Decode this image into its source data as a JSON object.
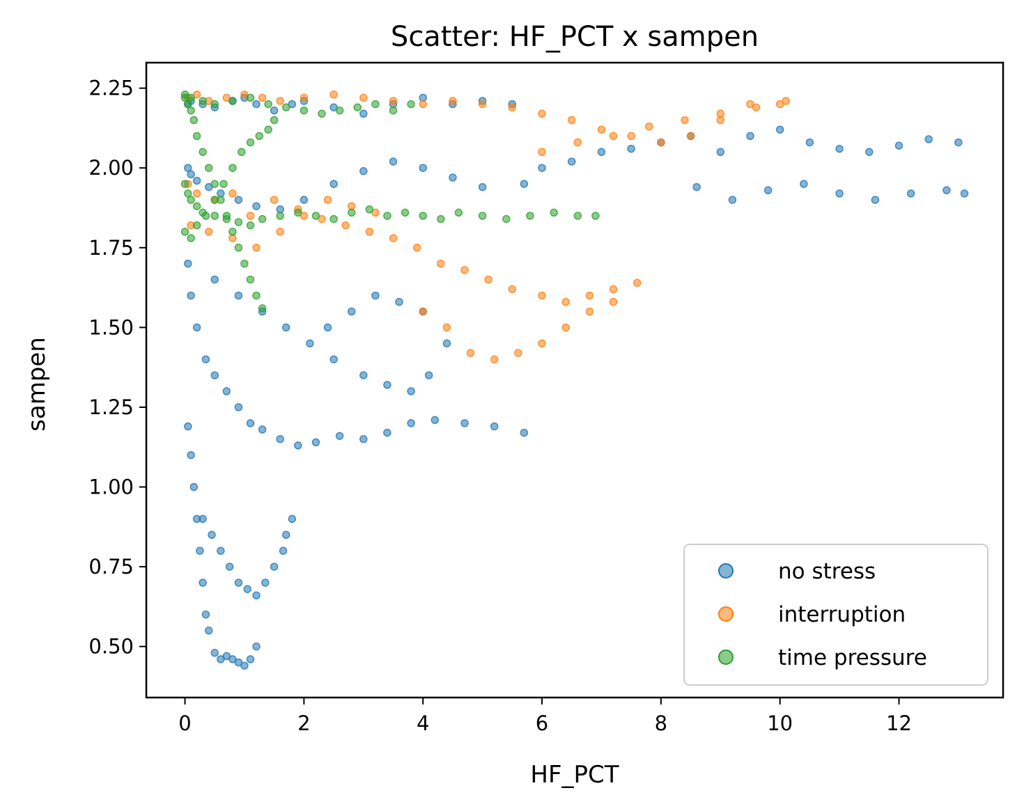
{
  "chart_data": {
    "type": "scatter",
    "title": "Scatter: HF_PCT x sampen",
    "xlabel": "HF_PCT",
    "ylabel": "sampen",
    "xlim": [
      -0.65,
      13.75
    ],
    "ylim": [
      0.34,
      2.33
    ],
    "xticks": [
      0,
      2,
      4,
      6,
      8,
      10,
      12
    ],
    "xtick_labels": [
      "0",
      "2",
      "4",
      "6",
      "8",
      "10",
      "12"
    ],
    "yticks": [
      0.5,
      0.75,
      1.0,
      1.25,
      1.5,
      1.75,
      2.0,
      2.25
    ],
    "ytick_labels": [
      "0.50",
      "0.75",
      "1.00",
      "1.25",
      "1.50",
      "1.75",
      "2.00",
      "2.25"
    ],
    "grid": false,
    "legend_position": "lower-right",
    "series": [
      {
        "name": "no stress",
        "color": "#1f77b4",
        "x": [
          0.05,
          0.1,
          0.3,
          0.5,
          0.8,
          1.0,
          1.2,
          1.5,
          1.8,
          2.0,
          2.5,
          3.0,
          3.5,
          4.0,
          4.5,
          5.0,
          5.5,
          0.05,
          0.1,
          0.2,
          0.4,
          0.6,
          0.9,
          1.2,
          1.6,
          2.0,
          2.5,
          3.0,
          3.5,
          4.0,
          4.5,
          5.0,
          5.7,
          6.0,
          6.5,
          7.0,
          7.5,
          8.0,
          8.5,
          9.0,
          9.5,
          10.0,
          10.5,
          11.0,
          11.5,
          12.0,
          12.5,
          13.0,
          13.1,
          12.8,
          12.2,
          11.6,
          11.0,
          10.4,
          9.8,
          9.2,
          8.6,
          0.05,
          0.1,
          0.2,
          0.35,
          0.5,
          0.7,
          0.9,
          1.1,
          1.3,
          1.6,
          1.9,
          2.2,
          2.6,
          3.0,
          3.4,
          3.8,
          4.2,
          4.7,
          5.2,
          5.7,
          0.05,
          0.1,
          0.15,
          0.2,
          0.25,
          0.3,
          0.35,
          0.4,
          0.5,
          0.6,
          0.7,
          0.8,
          0.9,
          1.0,
          1.1,
          1.2,
          0.3,
          0.45,
          0.6,
          0.75,
          0.9,
          1.05,
          1.2,
          1.35,
          1.5,
          1.65,
          1.7,
          1.8,
          0.5,
          0.9,
          1.3,
          1.7,
          2.1,
          2.5,
          3.0,
          3.4,
          3.8,
          4.1,
          4.4,
          4.0,
          3.6,
          3.2,
          2.8,
          2.4
        ],
        "y": [
          2.2,
          2.21,
          2.2,
          2.19,
          2.21,
          2.22,
          2.2,
          2.18,
          2.2,
          2.21,
          2.19,
          2.17,
          2.2,
          2.22,
          2.2,
          2.21,
          2.2,
          2.0,
          1.98,
          1.96,
          1.94,
          1.92,
          1.9,
          1.88,
          1.87,
          1.9,
          1.95,
          1.99,
          2.02,
          2.0,
          1.97,
          1.94,
          1.95,
          2.0,
          2.02,
          2.05,
          2.06,
          2.08,
          2.1,
          2.05,
          2.1,
          2.12,
          2.08,
          2.06,
          2.05,
          2.07,
          2.09,
          2.08,
          1.92,
          1.93,
          1.92,
          1.9,
          1.92,
          1.95,
          1.93,
          1.9,
          1.94,
          1.7,
          1.6,
          1.5,
          1.4,
          1.35,
          1.3,
          1.25,
          1.2,
          1.18,
          1.15,
          1.13,
          1.14,
          1.16,
          1.15,
          1.17,
          1.2,
          1.21,
          1.2,
          1.19,
          1.17,
          1.19,
          1.1,
          1.0,
          0.9,
          0.8,
          0.7,
          0.6,
          0.55,
          0.48,
          0.46,
          0.47,
          0.46,
          0.45,
          0.44,
          0.46,
          0.5,
          0.9,
          0.85,
          0.8,
          0.75,
          0.7,
          0.68,
          0.66,
          0.7,
          0.75,
          0.8,
          0.85,
          0.9,
          1.65,
          1.6,
          1.55,
          1.5,
          1.45,
          1.4,
          1.35,
          1.32,
          1.3,
          1.35,
          1.45,
          1.55,
          1.58,
          1.6,
          1.55,
          1.5
        ]
      },
      {
        "name": "interruption",
        "color": "#ff7f0e",
        "x": [
          0.05,
          0.2,
          0.4,
          0.7,
          1.0,
          1.3,
          1.6,
          2.0,
          2.5,
          3.0,
          3.5,
          4.0,
          4.5,
          5.0,
          5.5,
          6.0,
          6.5,
          7.0,
          7.5,
          8.0,
          8.5,
          9.0,
          9.5,
          10.0,
          10.1,
          9.6,
          9.0,
          8.4,
          7.8,
          7.2,
          6.6,
          6.0,
          0.05,
          0.2,
          0.5,
          0.8,
          1.1,
          1.5,
          1.9,
          2.3,
          2.7,
          3.1,
          3.5,
          3.9,
          4.3,
          4.7,
          5.1,
          5.5,
          6.0,
          6.4,
          6.8,
          7.2,
          7.6,
          7.2,
          6.8,
          6.4,
          6.0,
          5.6,
          5.2,
          4.8,
          4.4,
          4.0,
          0.1,
          0.4,
          0.8,
          1.2,
          1.6,
          2.0,
          2.4,
          2.8,
          3.2
        ],
        "y": [
          2.22,
          2.23,
          2.21,
          2.22,
          2.23,
          2.22,
          2.21,
          2.22,
          2.23,
          2.22,
          2.21,
          2.2,
          2.21,
          2.2,
          2.19,
          2.17,
          2.15,
          2.12,
          2.1,
          2.08,
          2.1,
          2.15,
          2.2,
          2.2,
          2.21,
          2.19,
          2.17,
          2.15,
          2.13,
          2.1,
          2.08,
          2.05,
          1.95,
          1.92,
          1.9,
          1.92,
          1.85,
          1.9,
          1.87,
          1.84,
          1.82,
          1.8,
          1.78,
          1.75,
          1.7,
          1.68,
          1.65,
          1.62,
          1.6,
          1.58,
          1.6,
          1.62,
          1.64,
          1.58,
          1.55,
          1.5,
          1.45,
          1.42,
          1.4,
          1.42,
          1.5,
          1.55,
          1.82,
          1.8,
          1.78,
          1.75,
          1.8,
          1.85,
          1.9,
          1.88,
          1.86
        ]
      },
      {
        "name": "time pressure",
        "color": "#2ca02c",
        "x": [
          0.0,
          0.05,
          0.1,
          0.15,
          0.2,
          0.3,
          0.4,
          0.5,
          0.6,
          0.7,
          0.8,
          0.9,
          1.0,
          1.1,
          1.2,
          1.3,
          0.0,
          0.05,
          0.1,
          0.2,
          0.3,
          0.5,
          0.7,
          0.9,
          1.1,
          1.3,
          1.6,
          1.9,
          2.2,
          2.5,
          2.8,
          3.1,
          3.4,
          3.7,
          4.0,
          4.3,
          4.6,
          5.0,
          5.4,
          5.8,
          6.2,
          6.6,
          6.9,
          0.0,
          0.1,
          0.3,
          0.5,
          0.8,
          1.1,
          1.4,
          1.7,
          2.0,
          2.3,
          2.6,
          2.9,
          3.2,
          3.5,
          3.8,
          0.0,
          0.1,
          0.2,
          0.35,
          0.5,
          0.65,
          0.8,
          0.95,
          1.1,
          1.25,
          1.4,
          1.5
        ],
        "y": [
          2.22,
          2.2,
          2.18,
          2.15,
          2.1,
          2.05,
          2.0,
          1.95,
          1.9,
          1.85,
          1.8,
          1.75,
          1.7,
          1.65,
          1.6,
          1.56,
          1.95,
          1.92,
          1.9,
          1.88,
          1.86,
          1.85,
          1.84,
          1.83,
          1.82,
          1.84,
          1.85,
          1.86,
          1.85,
          1.84,
          1.86,
          1.87,
          1.85,
          1.86,
          1.85,
          1.84,
          1.86,
          1.85,
          1.84,
          1.85,
          1.86,
          1.85,
          1.85,
          2.23,
          2.22,
          2.21,
          2.2,
          2.21,
          2.22,
          2.2,
          2.19,
          2.18,
          2.17,
          2.18,
          2.19,
          2.2,
          2.18,
          2.2,
          1.8,
          1.78,
          1.82,
          1.85,
          1.9,
          1.95,
          2.0,
          2.05,
          2.08,
          2.1,
          2.12,
          2.15
        ]
      }
    ]
  }
}
